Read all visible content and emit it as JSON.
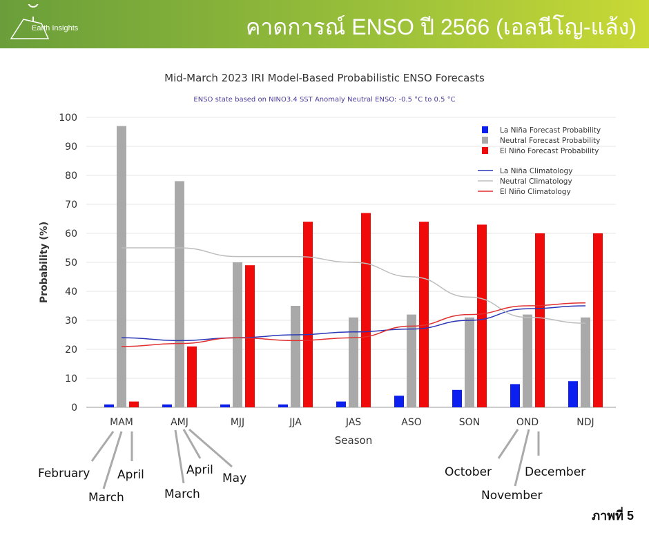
{
  "header": {
    "logo_text": "Earth Insights",
    "title": "คาดการณ์ ENSO ปี 2566 (เอลนีโญ-แล้ง)"
  },
  "figure_label": "ภาพที่ 5",
  "colors": {
    "la_nina": "#0a1ff0",
    "neutral": "#a9a9a9",
    "el_nino": "#f00a0a",
    "la_nina_line": "#2a35b5",
    "neutral_line": "#bdbdbd",
    "el_nino_line": "#e03030"
  },
  "chart_data": {
    "type": "bar",
    "title": "Mid-March 2023 IRI Model-Based Probabilistic ENSO Forecasts",
    "subtitle": "ENSO state based on NINO3.4 SST Anomaly Neutral ENSO: -0.5 °C to 0.5 °C",
    "xlabel": "Season",
    "ylabel": "Probability (%)",
    "ylim": [
      0,
      100
    ],
    "yticks": [
      "0",
      "10",
      "20",
      "30",
      "40",
      "50",
      "60",
      "70",
      "80",
      "90",
      "100"
    ],
    "categories": [
      "MAM",
      "AMJ",
      "MJJ",
      "JJA",
      "JAS",
      "ASO",
      "SON",
      "OND",
      "NDJ"
    ],
    "series": [
      {
        "name": "La Niña Forecast Probability",
        "kind": "bar",
        "values": [
          1,
          1,
          1,
          1,
          2,
          4,
          6,
          8,
          9
        ]
      },
      {
        "name": "Neutral Forecast Probability",
        "kind": "bar",
        "values": [
          97,
          78,
          50,
          35,
          31,
          32,
          31,
          32,
          31
        ]
      },
      {
        "name": "El Niño Forecast Probability",
        "kind": "bar",
        "values": [
          2,
          21,
          49,
          64,
          67,
          64,
          63,
          60,
          60
        ]
      },
      {
        "name": "La Niña Climatology",
        "kind": "line",
        "values": [
          24,
          23,
          24,
          25,
          26,
          27,
          30,
          34,
          35
        ]
      },
      {
        "name": "Neutral Climatology",
        "kind": "line",
        "values": [
          55,
          55,
          52,
          52,
          50,
          45,
          38,
          31,
          29
        ]
      },
      {
        "name": "El Niño Climatology",
        "kind": "line",
        "values": [
          21,
          22,
          24,
          23,
          24,
          28,
          32,
          35,
          36
        ]
      }
    ],
    "legend_position": "top-right",
    "annotations": [
      "February",
      "March",
      "April",
      "March",
      "April",
      "May",
      "October",
      "November",
      "December"
    ]
  }
}
